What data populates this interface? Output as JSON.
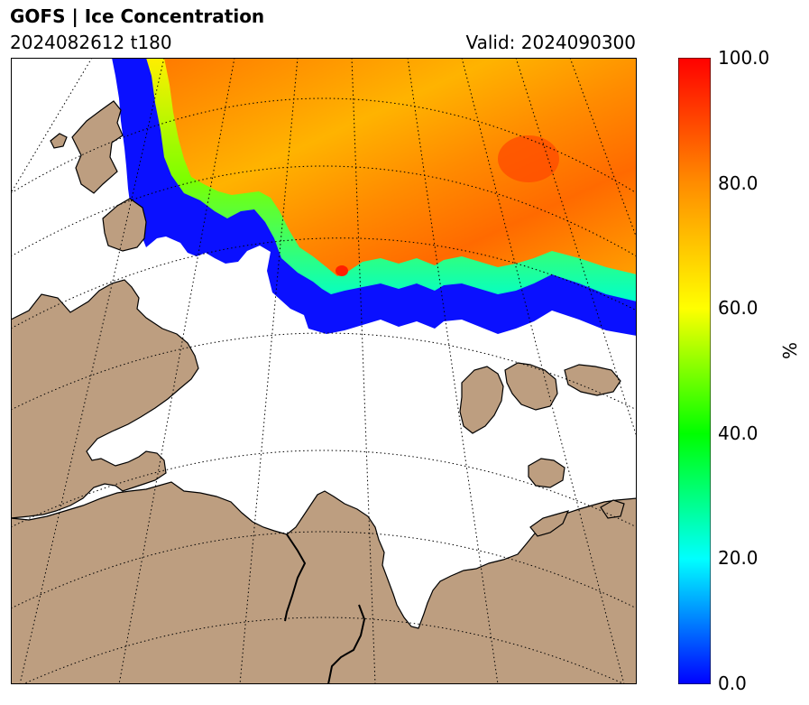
{
  "header": {
    "title": "GOFS  |  Ice Concentration",
    "init": "2024082612 t180",
    "valid": "Valid: 2024090300"
  },
  "colorbar": {
    "unit": "%",
    "ticks": [
      "0.0",
      "20.0",
      "40.0",
      "60.0",
      "80.0",
      "100.0"
    ],
    "min": 0,
    "max": 100,
    "colors": [
      "#0000ff",
      "#00ffff",
      "#00ff00",
      "#ffff00",
      "#ff8c00",
      "#ff0000"
    ]
  },
  "map": {
    "land_color": "#bd9e80",
    "ocean_color": "#ffffff",
    "ice_edge_color": "#0a0aff"
  }
}
